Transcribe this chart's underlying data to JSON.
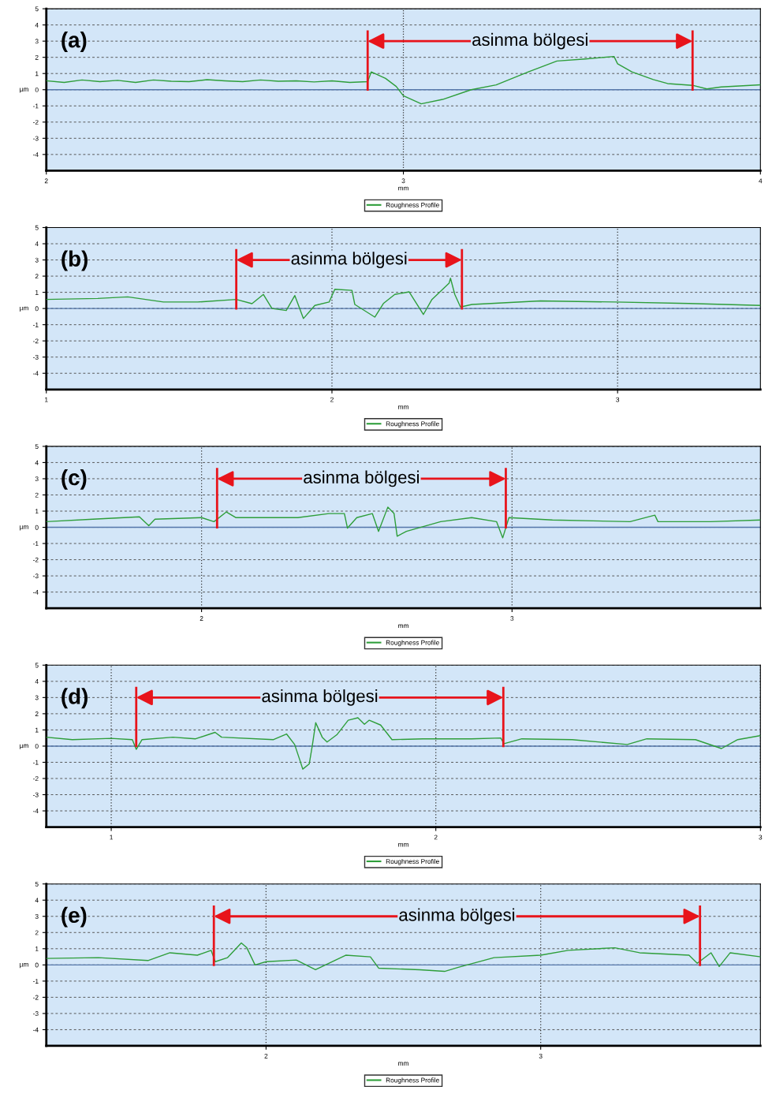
{
  "chart_data": [
    {
      "type": "line",
      "title": "(a)",
      "xlabel": "mm",
      "ylabel": "µm",
      "xlim": [
        2,
        4
      ],
      "xticks": [
        2,
        3,
        4
      ],
      "ylim": [
        -5,
        5
      ],
      "yticks": [
        5,
        4,
        3,
        2,
        1,
        0,
        -1,
        -2,
        -3,
        -4
      ],
      "grid": "y",
      "legend": "bottom",
      "marker": "none",
      "line_style": "solid",
      "ref_lines": [
        {
          "axis": "y",
          "value": 0,
          "color": "#5577aa"
        },
        {
          "axis": "x",
          "value": 3,
          "color": "#333333",
          "line_style": "dotted"
        },
        {
          "axis": "x",
          "value": 2.9,
          "color": "#e8141b"
        },
        {
          "axis": "x",
          "value": 3.81,
          "color": "#e8141b"
        }
      ],
      "annotations": [
        "asinma bölgesi"
      ],
      "series": [
        {
          "name": "Roughness Profile",
          "color": "#2e9e3a",
          "x": [
            2.0,
            2.05,
            2.1,
            2.15,
            2.2,
            2.25,
            2.3,
            2.35,
            2.4,
            2.45,
            2.5,
            2.55,
            2.6,
            2.65,
            2.7,
            2.75,
            2.8,
            2.85,
            2.9,
            2.91,
            2.95,
            2.98,
            3.0,
            3.05,
            3.11,
            3.19,
            3.26,
            3.35,
            3.43,
            3.51,
            3.59,
            3.6,
            3.64,
            3.7,
            3.74,
            3.81,
            3.85,
            3.89,
            4.0
          ],
          "values": [
            0.55,
            0.45,
            0.6,
            0.5,
            0.58,
            0.45,
            0.6,
            0.52,
            0.5,
            0.62,
            0.55,
            0.5,
            0.6,
            0.52,
            0.55,
            0.48,
            0.55,
            0.45,
            0.5,
            1.1,
            0.7,
            0.2,
            -0.37,
            -0.87,
            -0.6,
            0,
            0.3,
            1.1,
            1.77,
            1.9,
            2.05,
            1.6,
            1.1,
            0.63,
            0.38,
            0.27,
            0.05,
            0.17,
            0.3
          ]
        }
      ]
    },
    {
      "type": "line",
      "title": "(b)",
      "xlabel": "mm",
      "ylabel": "µm",
      "xlim": [
        1,
        3.5
      ],
      "xticks": [
        1,
        2,
        3
      ],
      "ylim": [
        -5,
        5
      ],
      "yticks": [
        5,
        4,
        3,
        2,
        1,
        0,
        -1,
        -2,
        -3,
        -4
      ],
      "grid": true,
      "legend": "bottom",
      "marker": "none",
      "line_style": "solid",
      "ref_lines": [
        {
          "axis": "y",
          "value": 0,
          "color": "#5577aa"
        },
        {
          "axis": "x",
          "value": 1.665,
          "color": "#e8141b"
        },
        {
          "axis": "x",
          "value": 2.455,
          "color": "#e8141b"
        }
      ],
      "annotations": [
        "asinma bölgesi"
      ],
      "series": [
        {
          "name": "Roughness Profile",
          "color": "#2e9e3a",
          "x": [
            1.0,
            1.18,
            1.285,
            1.41,
            1.53,
            1.665,
            1.72,
            1.76,
            1.79,
            1.84,
            1.87,
            1.9,
            1.94,
            1.99,
            2.01,
            2.07,
            2.08,
            2.15,
            2.18,
            2.22,
            2.27,
            2.32,
            2.35,
            2.41,
            2.415,
            2.43,
            2.45,
            2.49,
            2.73,
            2.99,
            3.25,
            3.5
          ],
          "values": [
            0.56,
            0.62,
            0.72,
            0.4,
            0.4,
            0.56,
            0.3,
            0.87,
            0,
            -0.12,
            0.8,
            -0.62,
            0.19,
            0.4,
            1.19,
            1.12,
            0.25,
            -0.53,
            0.31,
            0.87,
            1.03,
            -0.37,
            0.56,
            1.56,
            1.87,
            0.87,
            0.09,
            0.25,
            0.47,
            0.4,
            0.31,
            0.19
          ]
        }
      ]
    },
    {
      "type": "line",
      "title": "(c)",
      "xlabel": "mm",
      "ylabel": "µm",
      "xlim": [
        1.5,
        3.8
      ],
      "xticks": [
        2,
        3
      ],
      "ylim": [
        -5,
        5
      ],
      "yticks": [
        5,
        4,
        3,
        2,
        1,
        0,
        -1,
        -2,
        -3,
        -4
      ],
      "grid": true,
      "legend": "bottom",
      "marker": "none",
      "line_style": "solid",
      "ref_lines": [
        {
          "axis": "y",
          "value": 0,
          "color": "#5577aa"
        },
        {
          "axis": "x",
          "value": 2.05,
          "color": "#e8141b"
        },
        {
          "axis": "x",
          "value": 2.98,
          "color": "#e8141b"
        }
      ],
      "annotations": [
        "asinma bölgesi"
      ],
      "series": [
        {
          "name": "Roughness Profile",
          "color": "#2e9e3a",
          "x": [
            1.5,
            1.65,
            1.8,
            1.83,
            1.85,
            2.0,
            2.04,
            2.08,
            2.11,
            2.31,
            2.41,
            2.46,
            2.47,
            2.5,
            2.55,
            2.57,
            2.6,
            2.62,
            2.63,
            2.66,
            2.77,
            2.87,
            2.95,
            2.97,
            2.99,
            3.13,
            3.38,
            3.46,
            3.47,
            3.64,
            3.8
          ],
          "values": [
            0.35,
            0.5,
            0.65,
            0.1,
            0.5,
            0.6,
            0.35,
            0.95,
            0.6,
            0.6,
            0.85,
            0.85,
            -0.05,
            0.6,
            0.85,
            -0.25,
            1.25,
            0.85,
            -0.55,
            -0.25,
            0.35,
            0.6,
            0.35,
            -0.65,
            0.6,
            0.45,
            0.35,
            0.75,
            0.35,
            0.35,
            0.45
          ]
        }
      ]
    },
    {
      "type": "line",
      "title": "(d)",
      "xlabel": "mm",
      "ylabel": "µm",
      "xlim": [
        0.8,
        3
      ],
      "xticks": [
        1,
        2,
        3
      ],
      "ylim": [
        -5,
        5
      ],
      "yticks": [
        5,
        4,
        3,
        2,
        1,
        0,
        -1,
        -2,
        -3,
        -4
      ],
      "grid": true,
      "legend": "bottom",
      "marker": "none",
      "line_style": "solid",
      "ref_lines": [
        {
          "axis": "y",
          "value": 0,
          "color": "#5577aa"
        },
        {
          "axis": "x",
          "value": 1.077,
          "color": "#e8141b"
        },
        {
          "axis": "x",
          "value": 2.208,
          "color": "#e8141b"
        }
      ],
      "annotations": [
        "asinma bölgesi"
      ],
      "series": [
        {
          "name": "Roughness Profile",
          "color": "#2e9e3a",
          "x": [
            0.8,
            0.88,
            1.0,
            1.065,
            1.077,
            1.095,
            1.19,
            1.26,
            1.32,
            1.34,
            1.5,
            1.54,
            1.565,
            1.58,
            1.59,
            1.61,
            1.62,
            1.63,
            1.65,
            1.665,
            1.695,
            1.73,
            1.76,
            1.78,
            1.795,
            1.83,
            1.865,
            1.96,
            2.11,
            2.2,
            2.21,
            2.265,
            2.42,
            2.59,
            2.65,
            2.8,
            2.88,
            2.93,
            3.0
          ],
          "values": [
            0.55,
            0.4,
            0.48,
            0.4,
            -0.2,
            0.4,
            0.55,
            0.45,
            0.85,
            0.55,
            0.4,
            0.75,
            0.1,
            -0.8,
            -1.42,
            -1.1,
            0.1,
            1.45,
            0.55,
            0.25,
            0.7,
            1.6,
            1.75,
            1.35,
            1.6,
            1.3,
            0.4,
            0.45,
            0.45,
            0.5,
            0.15,
            0.45,
            0.4,
            0.1,
            0.45,
            0.4,
            -0.15,
            0.4,
            0.65
          ]
        }
      ]
    },
    {
      "type": "line",
      "title": "(e)",
      "xlabel": "mm",
      "ylabel": "µm",
      "xlim": [
        1.2,
        3.8
      ],
      "xticks": [
        2,
        3
      ],
      "ylim": [
        -5,
        5
      ],
      "yticks": [
        5,
        4,
        3,
        2,
        1,
        0,
        -1,
        -2,
        -3,
        -4
      ],
      "grid": true,
      "legend": "bottom",
      "marker": "none",
      "line_style": "solid",
      "ref_lines": [
        {
          "axis": "y",
          "value": 0,
          "color": "#5577aa"
        },
        {
          "axis": "x",
          "value": 1.81,
          "color": "#e8141b"
        },
        {
          "axis": "x",
          "value": 3.58,
          "color": "#e8141b"
        }
      ],
      "annotations": [
        "asinma bölgesi"
      ],
      "series": [
        {
          "name": "Roughness Profile",
          "color": "#2e9e3a",
          "x": [
            1.2,
            1.39,
            1.57,
            1.65,
            1.75,
            1.8,
            1.815,
            1.86,
            1.91,
            1.93,
            1.96,
            2.0,
            2.11,
            2.18,
            2.29,
            2.38,
            2.41,
            2.56,
            2.65,
            2.7,
            2.83,
            3.0,
            3.1,
            3.27,
            3.36,
            3.54,
            3.57,
            3.62,
            3.65,
            3.69,
            3.8
          ],
          "values": [
            0.4,
            0.45,
            0.27,
            0.75,
            0.6,
            0.9,
            0.2,
            0.45,
            1.36,
            1.06,
            0,
            0.2,
            0.3,
            -0.3,
            0.6,
            0.5,
            -0.2,
            -0.3,
            -0.4,
            -0.15,
            0.45,
            0.6,
            0.9,
            1.06,
            0.75,
            0.6,
            0.1,
            0.75,
            -0.1,
            0.75,
            0.5
          ]
        }
      ]
    }
  ]
}
